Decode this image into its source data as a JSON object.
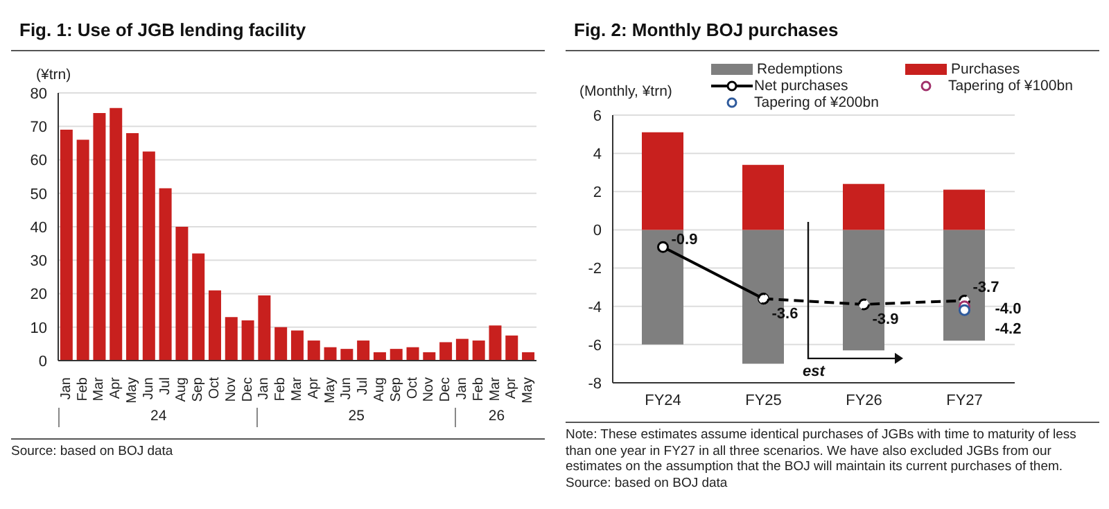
{
  "chart_data": [
    {
      "type": "bar",
      "title": "Fig. 1: Use of JGB lending facility",
      "ylabel": "(¥trn)",
      "categories": [
        "Jan",
        "Feb",
        "Mar",
        "Apr",
        "May",
        "Jun",
        "Jul",
        "Aug",
        "Sep",
        "Oct",
        "Nov",
        "Dec",
        "Jan",
        "Feb",
        "Mar",
        "Apr",
        "May",
        "Jun",
        "Jul",
        "Aug",
        "Sep",
        "Oct",
        "Nov",
        "Dec",
        "Jan",
        "Feb",
        "Mar",
        "Apr",
        "May"
      ],
      "values": [
        69,
        66,
        74,
        75.5,
        68,
        62.5,
        51.5,
        40,
        32,
        21,
        13,
        12,
        19.5,
        10,
        9,
        6,
        4,
        3.5,
        6,
        2.5,
        3.5,
        4,
        2.5,
        5.5,
        6.5,
        6,
        10.5,
        7.5,
        2.5
      ],
      "color": "#c8201e",
      "ylim": [
        0,
        80
      ],
      "yticks": [
        0,
        10,
        20,
        30,
        40,
        50,
        60,
        70,
        80
      ],
      "grid": "y",
      "annotations": [
        "24",
        "25",
        "26",
        "Source: based on BOJ data"
      ]
    },
    {
      "type": "bar",
      "title": "Fig. 2: Monthly BOJ purchases",
      "ylabel": "(Monthly, ¥trn)",
      "categories": [
        "FY24",
        "FY25",
        "FY26",
        "FY27"
      ],
      "stacked": true,
      "legend": "top",
      "marker": "circle",
      "grid": "y",
      "series": [
        {
          "name": "Redemptions",
          "color": "#7f7f7f",
          "values": [
            -6.0,
            -7.0,
            -6.3,
            -5.8
          ]
        },
        {
          "name": "Purchases",
          "color": "#c8201e",
          "values": [
            5.1,
            3.4,
            2.4,
            2.1
          ]
        },
        {
          "name": "Net purchases",
          "type": "line",
          "line_style": "solid",
          "color": "#000000",
          "values": [
            -0.9,
            -3.6,
            null,
            null
          ],
          "value_labels": [
            "-0.9",
            "-3.6",
            null,
            null
          ]
        },
        {
          "type": "line",
          "line_style": "dashed",
          "color": "#000000",
          "values": [
            null,
            -3.6,
            -3.9,
            -3.7
          ],
          "value_labels": [
            null,
            null,
            "-3.9",
            "-3.7"
          ]
        },
        {
          "name": "Tapering of ¥100bn",
          "type": "scatter",
          "color": "#a0306a",
          "x": [
            "FY27"
          ],
          "values": [
            -4.0
          ],
          "value_labels": [
            "-4.0"
          ]
        },
        {
          "name": "Tapering of ¥200bn",
          "type": "scatter",
          "color": "#2e5a9c",
          "x": [
            "FY27"
          ],
          "values": [
            -4.2
          ],
          "value_labels": [
            "-4.2"
          ]
        }
      ],
      "ylim": [
        -8,
        6
      ],
      "yticks": [
        -8,
        -6,
        -4,
        -2,
        0,
        2,
        4,
        6
      ],
      "annotations": [
        "est",
        "Note: These estimates assume identical purchases of JGBs with time to maturity of less than one year in FY27 in all three scenarios. We have also excluded JGBs from our estimates on the assumption that the BOJ will maintain its current purchases of them.",
        "Source: based on BOJ data"
      ]
    }
  ]
}
